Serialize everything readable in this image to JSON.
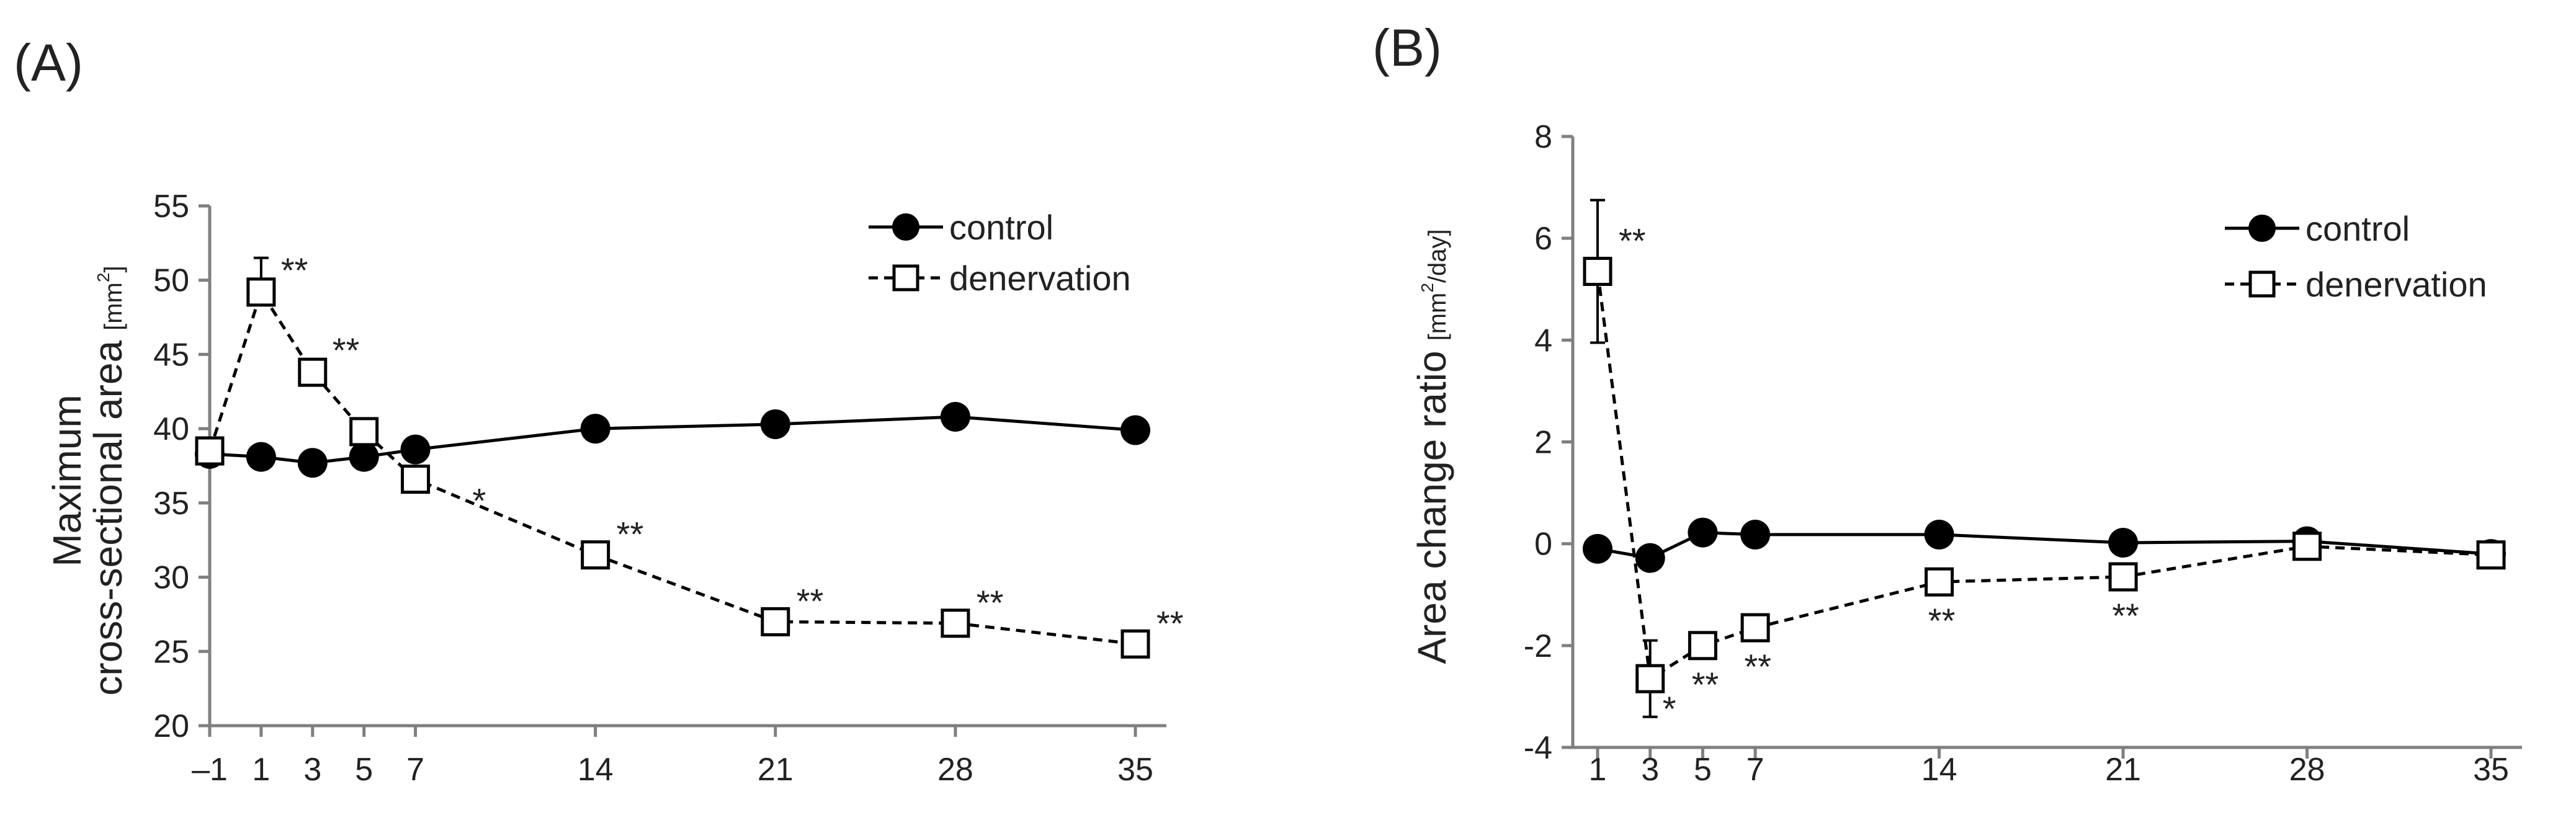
{
  "chart_data": [
    {
      "panel_label": "(A)",
      "type": "line",
      "ylabel": [
        "Maximum",
        "cross-sectional area"
      ],
      "yunit": {
        "base": "[mm",
        "sup": "2",
        "end": "]"
      },
      "xlabel": "",
      "x": [
        -1,
        1,
        3,
        5,
        7,
        14,
        21,
        28,
        35
      ],
      "x_tick_labels": [
        "–1",
        "1",
        "3",
        "5",
        "7",
        "14",
        "21",
        "28",
        "35"
      ],
      "xlim": [
        -1,
        35
      ],
      "ylim": [
        20,
        55
      ],
      "y_ticks": [
        20,
        25,
        30,
        35,
        40,
        45,
        50,
        55
      ],
      "grid": false,
      "legend_position": "top-right",
      "series": [
        {
          "name": "control",
          "marker": "filled-circle",
          "line": "solid",
          "values": [
            38.3,
            38.1,
            37.7,
            38.1,
            38.6,
            40.0,
            40.3,
            40.8,
            39.9
          ]
        },
        {
          "name": "denervation",
          "marker": "open-square",
          "line": "dashed",
          "values": [
            38.5,
            49.2,
            43.8,
            39.8,
            36.6,
            31.5,
            27.0,
            26.9,
            25.5
          ],
          "error_up": [
            null,
            2.3,
            null,
            null,
            null,
            null,
            null,
            null,
            null
          ],
          "significance": [
            "",
            "**",
            "**",
            "",
            "*",
            "**",
            "**",
            "**",
            "**"
          ]
        }
      ]
    },
    {
      "panel_label": "(B)",
      "type": "line",
      "ylabel": [
        "Area change ratio"
      ],
      "yunit": {
        "base": "[mm",
        "sup": "2",
        "end": "/day]"
      },
      "xlabel": "",
      "x": [
        1,
        3,
        5,
        7,
        14,
        21,
        28,
        35
      ],
      "x_tick_labels": [
        "1",
        "3",
        "5",
        "7",
        "14",
        "21",
        "28",
        "35"
      ],
      "xlim": [
        1,
        35
      ],
      "ylim": [
        -4,
        8
      ],
      "y_ticks": [
        -4,
        -2,
        0,
        2,
        4,
        6,
        8
      ],
      "y_tick_labels": [
        "-4",
        "-2",
        "0",
        "2",
        "4",
        "6",
        "8"
      ],
      "grid": false,
      "legend_position": "top-right",
      "series": [
        {
          "name": "control",
          "marker": "filled-circle",
          "line": "solid",
          "values": [
            -0.1,
            -0.28,
            0.22,
            0.18,
            0.18,
            0.02,
            0.05,
            -0.2
          ],
          "error_up": [
            0.2,
            null,
            null,
            null,
            null,
            null,
            null,
            null
          ]
        },
        {
          "name": "denervation",
          "marker": "open-square",
          "line": "dashed",
          "values": [
            5.35,
            -2.65,
            -2.0,
            -1.65,
            -0.75,
            -0.65,
            -0.05,
            -0.22
          ],
          "error_up": [
            1.4,
            0.75,
            null,
            null,
            null,
            null,
            null,
            null
          ],
          "error_down": [
            1.4,
            0.75,
            null,
            null,
            null,
            null,
            null,
            null
          ],
          "significance": [
            "**",
            "*",
            "**",
            "**",
            "**",
            "**",
            "",
            ""
          ],
          "significance_side": [
            "above",
            "below",
            "below",
            "below",
            "below",
            "below",
            "",
            ""
          ]
        }
      ]
    }
  ]
}
